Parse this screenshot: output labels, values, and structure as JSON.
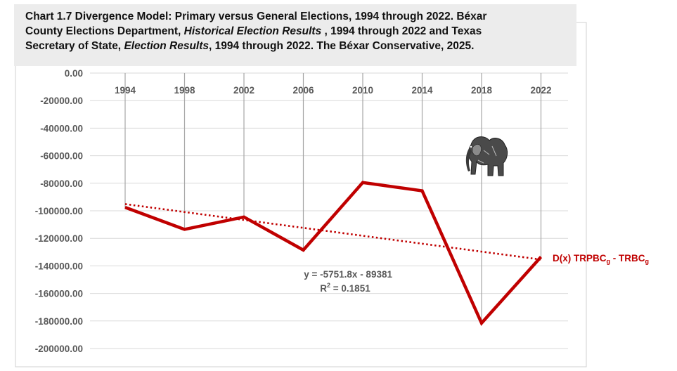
{
  "title_lines": [
    [
      {
        "text": "Chart 1.7 Divergence Model: Primary versus General Elections, 1994 through 2022. Béxar",
        "italic": false
      }
    ],
    [
      {
        "text": "County Elections Department, ",
        "italic": false
      },
      {
        "text": "Historical Election Results",
        "italic": true
      },
      {
        "text": " , 1994 through 2022 and Texas",
        "italic": false
      }
    ],
    [
      {
        "text": "Secretary of State, ",
        "italic": false
      },
      {
        "text": "Election Results",
        "italic": true
      },
      {
        "text": ", 1994 through 2022. The Béxar Conservative, 2025.",
        "italic": false
      }
    ]
  ],
  "chart_data": {
    "type": "line",
    "title": "Chart 1.7 Divergence Model: Primary versus General Elections, 1994 through 2022",
    "categories": [
      "1994",
      "1998",
      "2002",
      "2006",
      "2010",
      "2014",
      "2018",
      "2022"
    ],
    "series": [
      {
        "name": "D(x) TRPBCg - TRBCg",
        "label_parts": [
          {
            "text": "D(x) TRPBC",
            "sub": false
          },
          {
            "text": "g",
            "sub": true
          },
          {
            "text": " - TRBC",
            "sub": false
          },
          {
            "text": "g",
            "sub": true
          }
        ],
        "color": "#c00000",
        "values": [
          -97500,
          -113500,
          -104500,
          -128500,
          -79500,
          -85500,
          -181500,
          -133500
        ]
      }
    ],
    "trendline": {
      "type": "linear",
      "slope": -5751.8,
      "intercept": -89381,
      "r2": 0.1851,
      "color": "#c00000"
    },
    "equation": {
      "line1": "y = -5751.8x - 89381",
      "line2_prefix": "R",
      "line2_sup": "2",
      "line2_suffix": " = 0.1851"
    },
    "ylim": [
      -200000,
      0
    ],
    "ytick_step": 20000,
    "ytick_labels": [
      "0.00",
      "-20000.00",
      "-40000.00",
      "-60000.00",
      "-80000.00",
      "-100000.00",
      "-120000.00",
      "-140000.00",
      "-160000.00",
      "-180000.00",
      "-200000.00"
    ],
    "xlabel": "",
    "ylabel": "",
    "grid": true,
    "image": "elephant"
  }
}
